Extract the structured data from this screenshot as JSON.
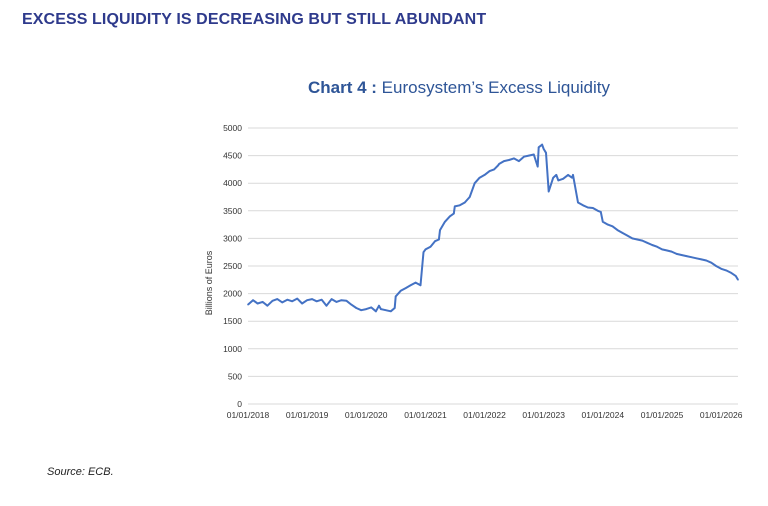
{
  "headline": "EXCESS LIQUIDITY IS DECREASING BUT STILL ABUNDANT",
  "source": "Source: ECB.",
  "colors": {
    "headline": "#2e3a8c",
    "line": "#4472c4",
    "title": "#2e5597",
    "grid": "#d9d9d9"
  },
  "chart_data": {
    "type": "line",
    "title_prefix": "Chart 4 :",
    "title": "Eurosystem’s Excess Liquidity",
    "ylabel": "Billions of Euros",
    "xlabel": "",
    "ylim": [
      0,
      5000
    ],
    "yticks": [
      0,
      500,
      1000,
      1500,
      2000,
      2500,
      3000,
      3500,
      4000,
      4500,
      5000
    ],
    "xlim": [
      "2018-01-01",
      "2026-04-15"
    ],
    "xticks": [
      "01/01/2018",
      "01/01/2019",
      "01/01/2020",
      "01/01/2021",
      "01/01/2022",
      "01/01/2023",
      "01/01/2024",
      "01/01/2025",
      "01/01/2026"
    ],
    "grid": true,
    "series": [
      {
        "name": "",
        "x": [
          "2018-01-01",
          "2018-02-01",
          "2018-03-01",
          "2018-04-01",
          "2018-05-01",
          "2018-06-01",
          "2018-07-01",
          "2018-08-01",
          "2018-09-01",
          "2018-10-01",
          "2018-11-01",
          "2018-12-01",
          "2019-01-01",
          "2019-02-01",
          "2019-03-01",
          "2019-04-01",
          "2019-05-01",
          "2019-06-01",
          "2019-07-01",
          "2019-08-01",
          "2019-09-01",
          "2019-10-01",
          "2019-11-01",
          "2019-12-01",
          "2020-01-01",
          "2020-02-01",
          "2020-03-01",
          "2020-03-20",
          "2020-04-01",
          "2020-05-01",
          "2020-06-01",
          "2020-06-25",
          "2020-07-01",
          "2020-08-01",
          "2020-09-01",
          "2020-10-01",
          "2020-11-01",
          "2020-12-01",
          "2020-12-20",
          "2021-01-01",
          "2021-02-01",
          "2021-03-01",
          "2021-03-25",
          "2021-04-01",
          "2021-05-01",
          "2021-06-01",
          "2021-06-25",
          "2021-07-01",
          "2021-08-01",
          "2021-09-01",
          "2021-10-01",
          "2021-11-01",
          "2021-12-01",
          "2022-01-01",
          "2022-02-01",
          "2022-03-01",
          "2022-03-25",
          "2022-04-01",
          "2022-05-01",
          "2022-06-01",
          "2022-07-01",
          "2022-08-01",
          "2022-09-01",
          "2022-10-01",
          "2022-11-01",
          "2022-11-25",
          "2022-12-01",
          "2022-12-22",
          "2023-01-01",
          "2023-01-15",
          "2023-02-01",
          "2023-03-01",
          "2023-03-20",
          "2023-04-01",
          "2023-05-01",
          "2023-06-01",
          "2023-06-25",
          "2023-07-01",
          "2023-08-01",
          "2023-09-01",
          "2023-10-01",
          "2023-11-01",
          "2023-12-01",
          "2023-12-20",
          "2024-01-01",
          "2024-02-01",
          "2024-03-01",
          "2024-04-01",
          "2024-05-01",
          "2024-06-01",
          "2024-07-01",
          "2024-08-01",
          "2024-09-01",
          "2024-10-01",
          "2024-11-01",
          "2024-12-01",
          "2025-01-01",
          "2025-02-01",
          "2025-03-01",
          "2025-04-01",
          "2025-05-01",
          "2025-06-01",
          "2025-07-01",
          "2025-08-01",
          "2025-09-01",
          "2025-10-01",
          "2025-11-01",
          "2025-12-01",
          "2026-01-01",
          "2026-02-01",
          "2026-03-01",
          "2026-04-01",
          "2026-04-15"
        ],
        "values": [
          1800,
          1880,
          1820,
          1850,
          1780,
          1870,
          1900,
          1840,
          1890,
          1860,
          1910,
          1820,
          1880,
          1900,
          1860,
          1890,
          1780,
          1900,
          1850,
          1880,
          1870,
          1800,
          1740,
          1700,
          1720,
          1750,
          1680,
          1780,
          1720,
          1700,
          1680,
          1740,
          1950,
          2050,
          2100,
          2150,
          2200,
          2150,
          2750,
          2800,
          2850,
          2950,
          2980,
          3150,
          3300,
          3400,
          3450,
          3580,
          3600,
          3650,
          3750,
          4000,
          4100,
          4150,
          4220,
          4250,
          4320,
          4350,
          4400,
          4420,
          4450,
          4400,
          4480,
          4500,
          4520,
          4300,
          4650,
          4700,
          4620,
          4550,
          3850,
          4100,
          4150,
          4050,
          4080,
          4150,
          4100,
          4150,
          3650,
          3600,
          3560,
          3550,
          3500,
          3480,
          3300,
          3250,
          3220,
          3150,
          3100,
          3050,
          3000,
          2980,
          2960,
          2920,
          2880,
          2850,
          2800,
          2780,
          2760,
          2720,
          2700,
          2680,
          2660,
          2640,
          2620,
          2600,
          2560,
          2500,
          2450,
          2420,
          2380,
          2320,
          2250
        ]
      }
    ]
  }
}
